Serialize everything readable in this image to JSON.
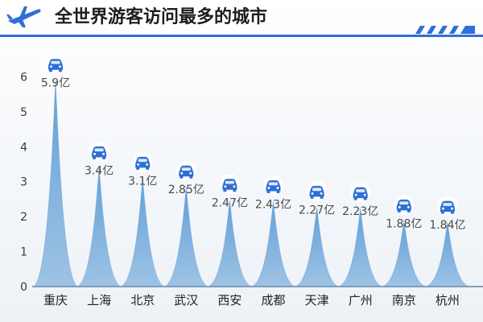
{
  "header": {
    "title": "全世界游客访问最多的城市"
  },
  "chart_data": {
    "type": "area",
    "categories": [
      "重庆",
      "上海",
      "北京",
      "武汉",
      "西安",
      "成都",
      "天津",
      "广州",
      "南京",
      "杭州"
    ],
    "values": [
      5.9,
      3.4,
      3.1,
      2.85,
      2.47,
      2.43,
      2.27,
      2.23,
      1.88,
      1.84
    ],
    "value_labels": [
      "5.9亿",
      "3.4亿",
      "3.1亿",
      "2.85亿",
      "2.47亿",
      "2.43亿",
      "2.27亿",
      "2.23亿",
      "1.88亿",
      "1.84亿"
    ],
    "yticks": [
      0,
      1,
      2,
      3,
      4,
      5,
      6
    ],
    "ylim": [
      0,
      6.4
    ],
    "grid": false,
    "fill_color": "#5b9bd5",
    "marker_color": "#2f6fd6",
    "marker_icon": "car-icon"
  }
}
